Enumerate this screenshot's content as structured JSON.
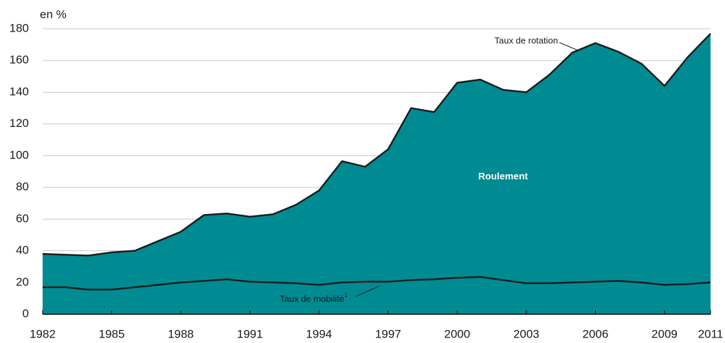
{
  "chart_data": {
    "type": "area",
    "y_label": "en %",
    "area_label": "Roulement",
    "x": [
      1982,
      1983,
      1984,
      1985,
      1986,
      1987,
      1988,
      1989,
      1990,
      1991,
      1992,
      1993,
      1994,
      1995,
      1996,
      1997,
      1998,
      1999,
      2000,
      2001,
      2002,
      2003,
      2004,
      2005,
      2006,
      2007,
      2008,
      2009,
      2010,
      2011
    ],
    "series": [
      {
        "name": "Taux de rotation",
        "color": "#008b93",
        "line_color": "#1c1c1c",
        "values": [
          38,
          37.5,
          37,
          39,
          40,
          46,
          52,
          62.5,
          63.5,
          61.5,
          63,
          69,
          78,
          96.5,
          93,
          104,
          130,
          127.5,
          146,
          148,
          141.5,
          140,
          151,
          165,
          171,
          165.5,
          158,
          144,
          162,
          177
        ]
      },
      {
        "name": "Taux de mobilité",
        "footnote": "1",
        "color": "#008b93",
        "line_color": "#1c1c1c",
        "values": [
          17,
          17,
          15.5,
          15.5,
          17,
          18.5,
          20,
          21,
          22,
          20.5,
          20,
          19.5,
          18.5,
          20,
          20.5,
          20.5,
          21.5,
          22,
          23,
          23.5,
          21.5,
          19.5,
          19.5,
          20,
          20.5,
          21,
          20,
          18.5,
          19,
          20
        ]
      }
    ],
    "xlim": [
      1982,
      2011
    ],
    "xticks": [
      1982,
      1985,
      1988,
      1991,
      1994,
      1997,
      2000,
      2003,
      2006,
      2009,
      2011
    ],
    "ylim": [
      0,
      180
    ],
    "yticks": [
      0,
      20,
      40,
      60,
      80,
      100,
      120,
      140,
      160,
      180
    ],
    "grid": true
  }
}
